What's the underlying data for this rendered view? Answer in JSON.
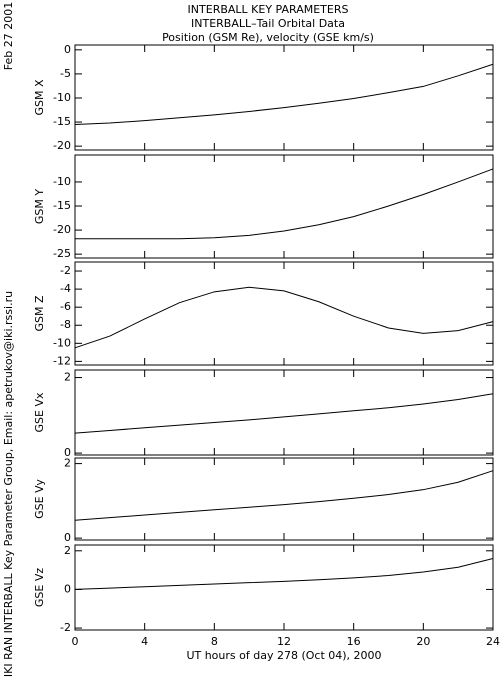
{
  "header": {
    "lines": [
      "INTERBALL KEY PARAMETERS",
      "INTERBALL–Tail Orbital Data",
      "Position (GSM Re), velocity (GSE km/s)"
    ],
    "date": "Feb 27 2001",
    "credit": "IKI RAN INTERBALL Key Parameter Group, Email: apetrukov@iki.rssi.ru"
  },
  "chart_data": [
    {
      "type": "line",
      "ylabel": "GSM X",
      "color": "#000000",
      "xlim": [
        0,
        24
      ],
      "ylim": [
        -20.8,
        1
      ],
      "yticks": [
        -20,
        -15,
        -10,
        -5,
        0
      ],
      "x": [
        0,
        2,
        4,
        6,
        8,
        10,
        12,
        14,
        16,
        18,
        20,
        22,
        24
      ],
      "values": [
        -15.5,
        -15.2,
        -14.7,
        -14.1,
        -13.5,
        -12.8,
        -12.0,
        -11.1,
        -10.1,
        -8.9,
        -7.6,
        -5.4,
        -3.0
      ]
    },
    {
      "type": "line",
      "ylabel": "GSM Y",
      "color": "#000000",
      "xlim": [
        0,
        24
      ],
      "ylim": [
        -25.8,
        -4.4
      ],
      "yticks": [
        -25,
        -20,
        -15,
        -10
      ],
      "x": [
        0,
        2,
        4,
        6,
        8,
        10,
        12,
        14,
        16,
        18,
        20,
        22,
        24
      ],
      "values": [
        -21.8,
        -21.8,
        -21.8,
        -21.8,
        -21.6,
        -21.1,
        -20.2,
        -18.9,
        -17.2,
        -15.0,
        -12.6,
        -10.0,
        -7.3
      ]
    },
    {
      "type": "line",
      "ylabel": "GSM Z",
      "color": "#000000",
      "xlim": [
        0,
        24
      ],
      "ylim": [
        -12.4,
        -1
      ],
      "yticks": [
        -12,
        -10,
        -8,
        -6,
        -4,
        -2
      ],
      "x": [
        0,
        2,
        4,
        6,
        8,
        10,
        12,
        14,
        16,
        18,
        20,
        22,
        24
      ],
      "values": [
        -10.5,
        -9.2,
        -7.3,
        -5.5,
        -4.3,
        -3.8,
        -4.2,
        -5.4,
        -7.0,
        -8.3,
        -8.9,
        -8.6,
        -7.6
      ]
    },
    {
      "type": "line",
      "ylabel": "GSE Vx",
      "color": "#000000",
      "xlim": [
        0,
        24
      ],
      "ylim": [
        -0.05,
        2.2
      ],
      "yticks": [
        0,
        2
      ],
      "x": [
        0,
        2,
        4,
        6,
        8,
        10,
        12,
        14,
        16,
        18,
        20,
        22,
        24
      ],
      "values": [
        0.53,
        0.6,
        0.67,
        0.74,
        0.81,
        0.88,
        0.96,
        1.04,
        1.12,
        1.2,
        1.3,
        1.42,
        1.57
      ]
    },
    {
      "type": "line",
      "ylabel": "GSE Vy",
      "color": "#000000",
      "xlim": [
        0,
        24
      ],
      "ylim": [
        -0.05,
        2.15
      ],
      "yticks": [
        0,
        2
      ],
      "x": [
        0,
        2,
        4,
        6,
        8,
        10,
        12,
        14,
        16,
        18,
        20,
        22,
        24
      ],
      "values": [
        0.48,
        0.55,
        0.62,
        0.69,
        0.76,
        0.83,
        0.9,
        0.98,
        1.07,
        1.17,
        1.3,
        1.5,
        1.81
      ]
    },
    {
      "type": "line",
      "ylabel": "GSE Vz",
      "color": "#000000",
      "xlim": [
        0,
        24
      ],
      "ylim": [
        -2.1,
        2.3
      ],
      "yticks": [
        -2,
        0,
        2
      ],
      "xlabel": "UT hours of day 278 (Oct 04), 2000",
      "xticks": [
        0,
        4,
        8,
        12,
        16,
        20,
        24
      ],
      "x": [
        0,
        2,
        4,
        6,
        8,
        10,
        12,
        14,
        16,
        18,
        20,
        22,
        24
      ],
      "values": [
        0,
        0.07,
        0.14,
        0.21,
        0.28,
        0.35,
        0.42,
        0.5,
        0.6,
        0.72,
        0.9,
        1.15,
        1.6
      ]
    }
  ]
}
